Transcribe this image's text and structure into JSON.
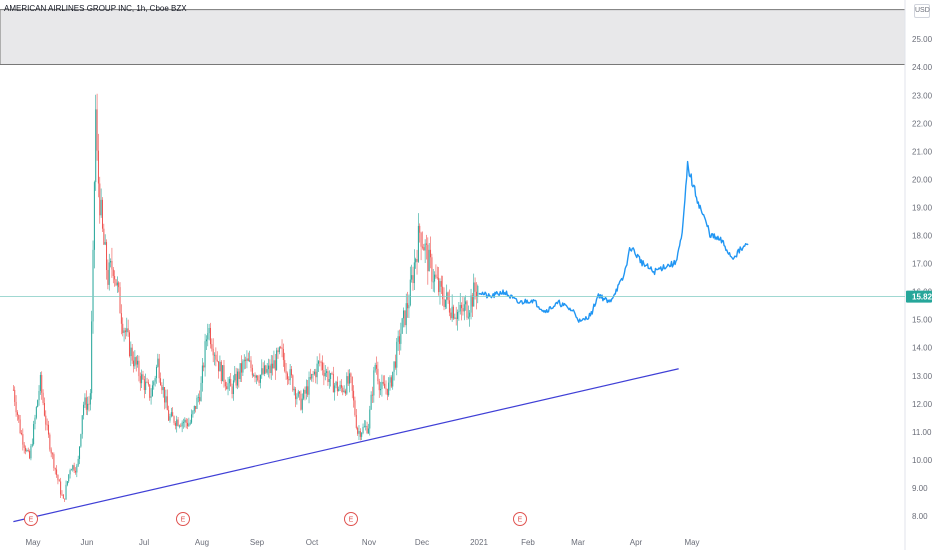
{
  "header": {
    "title": "AMERICAN AIRLINES GROUP INC, 1h, Cboe BZX",
    "currency": "USD"
  },
  "colors": {
    "up": "#26a69a",
    "down": "#ef5350",
    "projection": "#2196f3",
    "trendline": "#3f3fd6",
    "price_line": "#80cbc4",
    "price_tag": "#26a69a",
    "zone_fill": "#e8e8ea",
    "earnings": "#e0524f"
  },
  "chart_data": {
    "type": "candlestick",
    "title": "AMERICAN AIRLINES GROUP INC, 1h, Cboe BZX",
    "y_axis": {
      "ticks": [
        "8.00",
        "9.00",
        "10.00",
        "11.00",
        "12.00",
        "13.00",
        "14.00",
        "15.00",
        "16.00",
        "17.00",
        "18.00",
        "19.00",
        "20.00",
        "21.00",
        "22.00",
        "23.00",
        "24.00",
        "25.00"
      ],
      "range": [
        7.75,
        26.2
      ]
    },
    "x_axis": {
      "ticks": [
        "May",
        "Jun",
        "Jul",
        "Aug",
        "Sep",
        "Oct",
        "Nov",
        "Dec",
        "2021",
        "Feb",
        "Mar",
        "Apr",
        "May"
      ]
    },
    "last_price": "15.82",
    "earnings_markers": [
      "E",
      "E",
      "E",
      "E"
    ],
    "earnings_months": [
      "May",
      "Jul",
      "Oct",
      "Jan"
    ],
    "zone": {
      "low": 24.1,
      "high": 26.05
    },
    "trendline": [
      {
        "x": "2020-04-20",
        "y": 7.8
      },
      {
        "x": "2021-04-28",
        "y": 13.25
      }
    ],
    "price_path": [
      {
        "x": "2020-04-20",
        "y": 12.5
      },
      {
        "x": "2020-04-24",
        "y": 11.0
      },
      {
        "x": "2020-04-29",
        "y": 10.0
      },
      {
        "x": "2020-05-05",
        "y": 12.8
      },
      {
        "x": "2020-05-09",
        "y": 11.0
      },
      {
        "x": "2020-05-13",
        "y": 9.8
      },
      {
        "x": "2020-05-18",
        "y": 8.5
      },
      {
        "x": "2020-05-22",
        "y": 9.8
      },
      {
        "x": "2020-05-26",
        "y": 9.7
      },
      {
        "x": "2020-05-29",
        "y": 12.0
      },
      {
        "x": "2020-06-02",
        "y": 12.0
      },
      {
        "x": "2020-06-04",
        "y": 18.0
      },
      {
        "x": "2020-06-05",
        "y": 22.8
      },
      {
        "x": "2020-06-06",
        "y": 20.5
      },
      {
        "x": "2020-06-09",
        "y": 18.0
      },
      {
        "x": "2020-06-12",
        "y": 16.5
      },
      {
        "x": "2020-06-15",
        "y": 17.0
      },
      {
        "x": "2020-06-20",
        "y": 15.0
      },
      {
        "x": "2020-06-25",
        "y": 13.8
      },
      {
        "x": "2020-06-30",
        "y": 13.0
      },
      {
        "x": "2020-07-06",
        "y": 12.3
      },
      {
        "x": "2020-07-10",
        "y": 13.5
      },
      {
        "x": "2020-07-16",
        "y": 11.5
      },
      {
        "x": "2020-07-22",
        "y": 11.4
      },
      {
        "x": "2020-07-28",
        "y": 11.3
      },
      {
        "x": "2020-08-03",
        "y": 12.5
      },
      {
        "x": "2020-08-07",
        "y": 14.8
      },
      {
        "x": "2020-08-14",
        "y": 13.2
      },
      {
        "x": "2020-08-20",
        "y": 12.5
      },
      {
        "x": "2020-08-28",
        "y": 13.5
      },
      {
        "x": "2020-09-05",
        "y": 13.0
      },
      {
        "x": "2020-09-11",
        "y": 13.2
      },
      {
        "x": "2020-09-17",
        "y": 13.8
      },
      {
        "x": "2020-09-22",
        "y": 13.0
      },
      {
        "x": "2020-09-28",
        "y": 12.0
      },
      {
        "x": "2020-10-05",
        "y": 13.0
      },
      {
        "x": "2020-10-09",
        "y": 13.5
      },
      {
        "x": "2020-10-15",
        "y": 12.8
      },
      {
        "x": "2020-10-20",
        "y": 12.5
      },
      {
        "x": "2020-10-26",
        "y": 12.8
      },
      {
        "x": "2020-10-30",
        "y": 11.0
      },
      {
        "x": "2020-11-05",
        "y": 11.2
      },
      {
        "x": "2020-11-09",
        "y": 13.5
      },
      {
        "x": "2020-11-12",
        "y": 12.5
      },
      {
        "x": "2020-11-17",
        "y": 12.6
      },
      {
        "x": "2020-11-23",
        "y": 14.5
      },
      {
        "x": "2020-11-28",
        "y": 15.8
      },
      {
        "x": "2020-12-02",
        "y": 17.5
      },
      {
        "x": "2020-12-04",
        "y": 18.2
      },
      {
        "x": "2020-12-09",
        "y": 17.0
      },
      {
        "x": "2020-12-15",
        "y": 16.0
      },
      {
        "x": "2020-12-21",
        "y": 15.5
      },
      {
        "x": "2020-12-26",
        "y": 15.2
      },
      {
        "x": "2020-12-31",
        "y": 15.5
      },
      {
        "x": "2021-01-06",
        "y": 16.3
      }
    ],
    "projection_path": [
      {
        "x": "2021-01-06",
        "y": 16.0
      },
      {
        "x": "2021-01-12",
        "y": 15.8
      },
      {
        "x": "2021-01-20",
        "y": 16.0
      },
      {
        "x": "2021-01-28",
        "y": 15.6
      },
      {
        "x": "2021-02-05",
        "y": 15.7
      },
      {
        "x": "2021-02-12",
        "y": 15.3
      },
      {
        "x": "2021-02-20",
        "y": 15.6
      },
      {
        "x": "2021-02-28",
        "y": 15.3
      },
      {
        "x": "2021-03-04",
        "y": 14.9
      },
      {
        "x": "2021-03-10",
        "y": 15.2
      },
      {
        "x": "2021-03-14",
        "y": 15.9
      },
      {
        "x": "2021-03-20",
        "y": 15.6
      },
      {
        "x": "2021-03-28",
        "y": 16.5
      },
      {
        "x": "2021-04-01",
        "y": 17.6
      },
      {
        "x": "2021-04-08",
        "y": 17.0
      },
      {
        "x": "2021-04-14",
        "y": 16.7
      },
      {
        "x": "2021-04-20",
        "y": 16.9
      },
      {
        "x": "2021-04-26",
        "y": 17.0
      },
      {
        "x": "2021-04-30",
        "y": 18.0
      },
      {
        "x": "2021-05-03",
        "y": 20.5
      },
      {
        "x": "2021-05-06",
        "y": 19.8
      },
      {
        "x": "2021-05-10",
        "y": 19.0
      },
      {
        "x": "2021-05-16",
        "y": 18.0
      },
      {
        "x": "2021-05-22",
        "y": 17.8
      },
      {
        "x": "2021-05-28",
        "y": 17.2
      },
      {
        "x": "2021-06-02",
        "y": 17.5
      },
      {
        "x": "2021-06-06",
        "y": 17.7
      }
    ]
  }
}
